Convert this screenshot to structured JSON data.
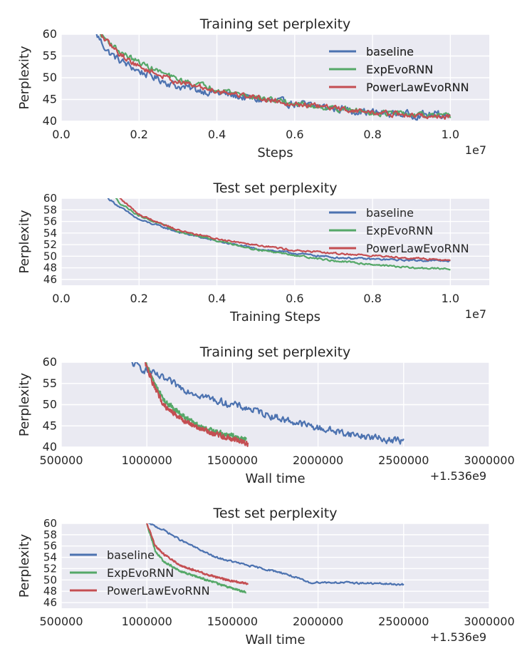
{
  "colors": {
    "baseline": "#4c72b0",
    "ExpEvoRNN": "#55a868",
    "PowerLawEvoRNN": "#c44e52",
    "panel_bg": "#eaeaf2",
    "grid": "#ffffff"
  },
  "chart_data": [
    {
      "type": "line",
      "title": "Training set perplexity",
      "xlabel": "Steps",
      "ylabel": "Perplexity",
      "x_offset_label": "1e7",
      "xlim": [
        0.0,
        1.1
      ],
      "ylim": [
        40,
        60
      ],
      "xticks": [
        0.0,
        0.2,
        0.4,
        0.6,
        0.8,
        1.0
      ],
      "xtick_labels": [
        "0.0",
        "0.2",
        "0.4",
        "0.6",
        "0.8",
        "1.0"
      ],
      "yticks": [
        40,
        45,
        50,
        55,
        60
      ],
      "legend_position": "upper-right",
      "series": [
        {
          "name": "baseline",
          "noise": 1.4,
          "x": [
            0.09,
            0.12,
            0.15,
            0.2,
            0.3,
            0.4,
            0.5,
            0.6,
            0.7,
            0.8,
            0.9,
            1.0
          ],
          "values": [
            60,
            56,
            54,
            51.5,
            48,
            46.5,
            45,
            44,
            43,
            42,
            41.5,
            41.5
          ]
        },
        {
          "name": "ExpEvoRNN",
          "noise": 1.0,
          "x": [
            0.1,
            0.12,
            0.15,
            0.2,
            0.3,
            0.4,
            0.5,
            0.6,
            0.7,
            0.8,
            0.9,
            1.0
          ],
          "values": [
            60,
            58.5,
            56,
            53.5,
            49.5,
            47.5,
            45.5,
            44,
            43,
            42,
            41.5,
            41
          ]
        },
        {
          "name": "PowerLawEvoRNN",
          "noise": 1.0,
          "x": [
            0.1,
            0.12,
            0.15,
            0.2,
            0.3,
            0.4,
            0.5,
            0.6,
            0.7,
            0.8,
            0.9,
            1.0
          ],
          "values": [
            60,
            58,
            55.5,
            52.5,
            49,
            47,
            45.5,
            44,
            43,
            42,
            41.3,
            41
          ]
        }
      ]
    },
    {
      "type": "line",
      "title": "Test set perplexity",
      "xlabel": "Training Steps",
      "ylabel": "Perplexity",
      "x_offset_label": "1e7",
      "xlim": [
        0.0,
        1.1
      ],
      "ylim": [
        45,
        60
      ],
      "xticks": [
        0.0,
        0.2,
        0.4,
        0.6,
        0.8,
        1.0
      ],
      "xtick_labels": [
        "0.0",
        "0.2",
        "0.4",
        "0.6",
        "0.8",
        "1.0"
      ],
      "yticks": [
        46,
        48,
        50,
        52,
        54,
        56,
        58,
        60
      ],
      "legend_position": "right",
      "series": [
        {
          "name": "baseline",
          "noise": 0.25,
          "x": [
            0.12,
            0.15,
            0.2,
            0.3,
            0.4,
            0.5,
            0.6,
            0.7,
            0.8,
            0.9,
            1.0
          ],
          "values": [
            60,
            58.5,
            56.3,
            54.2,
            52.6,
            51.3,
            50.5,
            49.8,
            49.5,
            49.3,
            49.2
          ]
        },
        {
          "name": "ExpEvoRNN",
          "noise": 0.25,
          "x": [
            0.14,
            0.15,
            0.2,
            0.3,
            0.4,
            0.5,
            0.6,
            0.7,
            0.8,
            0.9,
            1.0
          ],
          "values": [
            60,
            59.2,
            57,
            54.3,
            52.7,
            51.2,
            50.2,
            49.2,
            48.6,
            48.0,
            47.8
          ]
        },
        {
          "name": "PowerLawEvoRNN",
          "noise": 0.25,
          "x": [
            0.15,
            0.2,
            0.3,
            0.4,
            0.5,
            0.6,
            0.7,
            0.8,
            0.9,
            1.0
          ],
          "values": [
            60,
            57.2,
            54.5,
            53.0,
            52.0,
            51.0,
            50.5,
            50.1,
            49.7,
            49.3
          ]
        }
      ]
    },
    {
      "type": "line",
      "title": "Training set perplexity",
      "xlabel": "Wall time",
      "ylabel": "Perplexity",
      "x_offset_label": "+1.536e9",
      "xlim": [
        500000,
        3000000
      ],
      "ylim": [
        40,
        60
      ],
      "xticks": [
        500000,
        1000000,
        1500000,
        2000000,
        2500000,
        3000000
      ],
      "xtick_labels": [
        "500000",
        "1000000",
        "1500000",
        "2000000",
        "2500000",
        "3000000"
      ],
      "yticks": [
        40,
        45,
        50,
        55,
        60
      ],
      "legend_position": "upper-right",
      "series": [
        {
          "name": "baseline",
          "noise": 1.3,
          "x": [
            900000,
            1000000,
            1100000,
            1200000,
            1400000,
            1600000,
            1800000,
            2000000,
            2200000,
            2400000,
            2500000
          ],
          "values": [
            60,
            58,
            56,
            54,
            51,
            49,
            46.5,
            44.5,
            43,
            41.8,
            41.5
          ]
        },
        {
          "name": "ExpEvoRNN",
          "noise": 1.0,
          "x": [
            990000,
            1050000,
            1100000,
            1200000,
            1300000,
            1400000,
            1500000,
            1580000
          ],
          "values": [
            60,
            54.5,
            51,
            47.5,
            45,
            43.5,
            42.5,
            41.8
          ]
        },
        {
          "name": "PowerLawEvoRNN",
          "noise": 1.0,
          "x": [
            990000,
            1050000,
            1100000,
            1200000,
            1300000,
            1400000,
            1500000,
            1590000
          ],
          "values": [
            60,
            53.5,
            50,
            46.5,
            44.5,
            43,
            42,
            41
          ]
        }
      ]
    },
    {
      "type": "line",
      "title": "Test set perplexity",
      "xlabel": "Wall time",
      "ylabel": "Perplexity",
      "x_offset_label": "+1.536e9",
      "xlim": [
        500000,
        3000000
      ],
      "ylim": [
        45,
        60
      ],
      "xticks": [
        500000,
        1000000,
        1500000,
        2000000,
        2500000,
        3000000
      ],
      "xtick_labels": [
        "500000",
        "1000000",
        "1500000",
        "2000000",
        "2500000",
        "3000000"
      ],
      "yticks": [
        46,
        48,
        50,
        52,
        54,
        56,
        58,
        60
      ],
      "legend_position": "left",
      "series": [
        {
          "name": "baseline",
          "noise": 0.25,
          "x": [
            1010000,
            1100000,
            1200000,
            1300000,
            1400000,
            1600000,
            1800000,
            1950000,
            2000000,
            2200000,
            2400000,
            2500000
          ],
          "values": [
            60,
            58.8,
            57,
            55.5,
            54,
            52.5,
            51.2,
            49.5,
            49.6,
            49.5,
            49.3,
            49.2
          ]
        },
        {
          "name": "ExpEvoRNN",
          "noise": 0.25,
          "x": [
            1000000,
            1050000,
            1100000,
            1200000,
            1300000,
            1400000,
            1500000,
            1580000
          ],
          "values": [
            60,
            55,
            53.2,
            51.5,
            50.5,
            49.5,
            48.5,
            47.8
          ]
        },
        {
          "name": "PowerLawEvoRNN",
          "noise": 0.25,
          "x": [
            1000000,
            1050000,
            1100000,
            1200000,
            1300000,
            1400000,
            1500000,
            1590000
          ],
          "values": [
            60,
            56,
            54.5,
            52.5,
            51.5,
            50.5,
            49.8,
            49.3
          ]
        }
      ]
    }
  ]
}
